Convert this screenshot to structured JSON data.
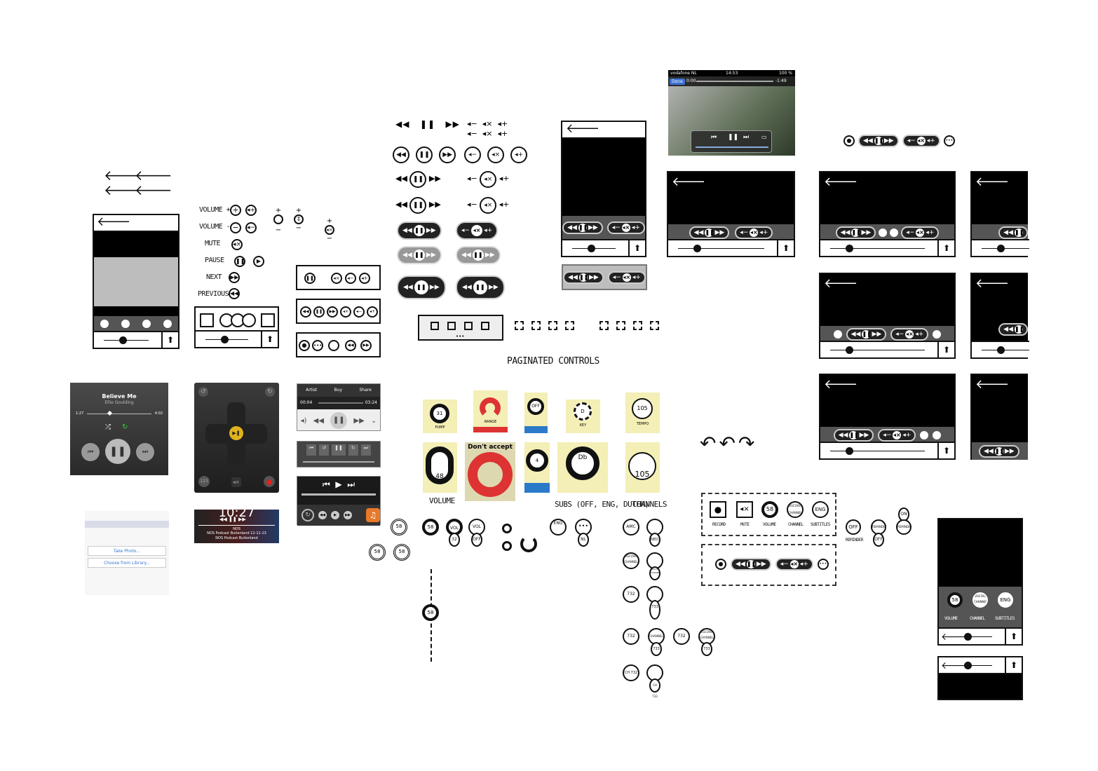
{
  "labels": {
    "volume_plus": "VOLUME +",
    "volume_minus": "VOLUME -",
    "mute": "MUTE",
    "pause": "PAUSE",
    "next": "NEXT",
    "previous": "PREVIOUS",
    "paginated_controls": "PAGINATED CONTROLS",
    "volume": "VOLUME",
    "subs": "SUBS (OFF, ENG, DUTCH)",
    "channels": "CHANNELS"
  },
  "music_player": {
    "title": "Believe Me",
    "artist": "Ellie Goulding",
    "elapsed": "1:27",
    "remaining": "4:02"
  },
  "video_screen": {
    "carrier": "vodafone NL",
    "time": "14:53",
    "battery": "100 %",
    "done": "Done",
    "elapsed": "0:00",
    "remaining": "-1:49"
  },
  "ipod_bar": {
    "artist": "Artist",
    "buy": "Buy",
    "share": "Share",
    "elapsed": "00:04",
    "remaining": "03:24"
  },
  "podcast": {
    "time": "10:27",
    "source": "NOS",
    "episode": "NOS Podcast Buitenland 12-11-13",
    "show": "NOS Podcast Buitenland"
  },
  "photo_sheet": {
    "take_photo": "Take Photo...",
    "choose": "Choose from Library..."
  },
  "knob_cards": {
    "pump_value": "31",
    "pump": "PUMP",
    "range": "RANGE",
    "key": "KEY",
    "key_value": "D",
    "tempo": "TEMPO",
    "tempo_value": "105",
    "volume_value": "48",
    "dont_accept": "Don't accept",
    "four": "4",
    "db": "Db",
    "big_tempo": "105",
    "off": "OFF"
  },
  "subs_controls": {
    "vol_value": "58",
    "vol": "VOL",
    "vol_32": "32",
    "vol_off": "OFF",
    "eng": "ENG",
    "nl": "NL",
    "amc": "AMC",
    "ned1": "NED1",
    "discovery": "DISCOVERY CHANNEL",
    "ch732": "732",
    "ch733": "733",
    "channel": "CHANNEL",
    "ch_prefix": "CH 732",
    "ch_next": "CH 733"
  },
  "record_panel": {
    "record": "RECORD",
    "mute": "MUTE",
    "volume": "VOLUME",
    "channel": "CHANNEL",
    "subtitles": "SUBTITLES",
    "vol_value": "58",
    "discovery": "DISCOVERY CHANNEL",
    "eng": "ENG",
    "off": "OFF",
    "reminder": "REMINDER",
    "on": "ON",
    "reminder_off": "OFF"
  },
  "phone_panel": {
    "volume": "VOLUME",
    "channel": "CHANNEL",
    "subtitles": "SUBTITLES",
    "vol_value": "58",
    "discovery": "DISCOVERY CHANNEL",
    "eng": "ENG"
  },
  "remote_pad": {
    "key_123": "123"
  }
}
